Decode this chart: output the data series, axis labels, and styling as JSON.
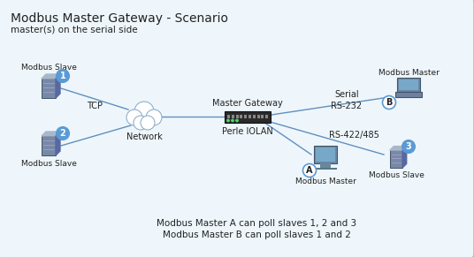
{
  "title": "Modbus Master Gateway - Scenario",
  "subtitle": "master(s) on the serial side",
  "bg_color": "#eef6fb",
  "border_color": "#90b8d0",
  "text_color": "#222222",
  "line_color": "#6090c0",
  "label_TCP": "TCP",
  "label_Network": "Network",
  "label_MasterGateway": "Master Gateway",
  "label_PerleIOLAN": "Perle IOLAN",
  "label_Serial": "Serial",
  "label_RS232": "RS-232",
  "label_RS422": "RS-422/485",
  "label_ModbusSlave1": "Modbus Slave",
  "label_ModbusSlave2": "Modbus Slave",
  "label_ModbusSlave3": "Modbus Slave",
  "label_ModbusMasterA": "Modbus Master",
  "label_ModbusMasterB": "Modbus Master",
  "label_A": "A",
  "label_B": "B",
  "label_1": "1",
  "label_2": "2",
  "label_3": "3",
  "annotation1": "Modbus Master A can poll slaves 1, 2 and 3",
  "annotation2": "Modbus Master B can poll slaves 1 and 2",
  "circle_fill": "#5b9bd5",
  "circle_text": "#ffffff",
  "cloud_fill": "#ffffff",
  "cloud_edge": "#90b0cc",
  "server_face": "#7888a8",
  "server_top": "#a8b8cc",
  "server_side": "#5868a0",
  "switch_fill": "#2a2a2a",
  "screen_fill": "#6888a8",
  "screen_inner": "#78a8c8"
}
